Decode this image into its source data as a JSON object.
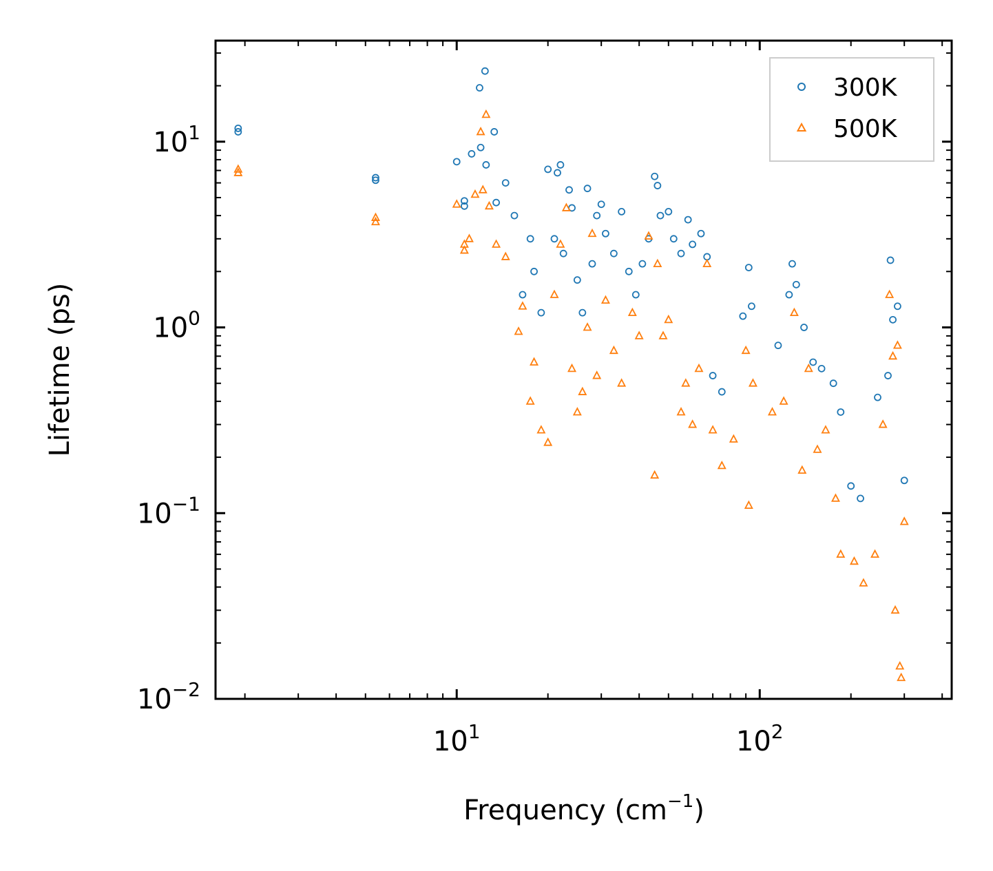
{
  "chart_data": {
    "type": "scatter",
    "xscale": "log",
    "yscale": "log",
    "xlim": [
      1.6,
      430
    ],
    "ylim": [
      0.01,
      35
    ],
    "xlabel": "Frequency (cm",
    "xlabel_sup": "−1",
    "xlabel_end": ")",
    "ylabel": "Lifetime (ps)",
    "x_ticks": [
      {
        "value": 10,
        "base": "10",
        "exp": "1"
      },
      {
        "value": 100,
        "base": "10",
        "exp": "2"
      }
    ],
    "y_ticks": [
      {
        "value": 10,
        "base": "10",
        "exp": "1"
      },
      {
        "value": 1,
        "base": "10",
        "exp": "0"
      },
      {
        "value": 0.1,
        "base": "10",
        "exp": "−1"
      },
      {
        "value": 0.01,
        "base": "10",
        "exp": "−2"
      }
    ],
    "legend_position": "top-right",
    "series": [
      {
        "name": "300K",
        "color": "#1f77b4",
        "marker": "circle",
        "points": [
          [
            1.9,
            11.8
          ],
          [
            1.9,
            11.3
          ],
          [
            5.4,
            6.4
          ],
          [
            5.4,
            6.2
          ],
          [
            10.0,
            7.8
          ],
          [
            10.6,
            4.8
          ],
          [
            10.6,
            4.5
          ],
          [
            11.2,
            8.6
          ],
          [
            11.9,
            19.5
          ],
          [
            12.4,
            24.0
          ],
          [
            12.0,
            9.3
          ],
          [
            12.5,
            7.5
          ],
          [
            13.3,
            11.3
          ],
          [
            13.5,
            4.7
          ],
          [
            14.5,
            6.0
          ],
          [
            15.5,
            4.0
          ],
          [
            16.5,
            1.5
          ],
          [
            17.5,
            3.0
          ],
          [
            18.0,
            2.0
          ],
          [
            19.0,
            1.2
          ],
          [
            20.0,
            7.1
          ],
          [
            21.0,
            3.0
          ],
          [
            21.5,
            6.8
          ],
          [
            22.0,
            7.5
          ],
          [
            22.5,
            2.5
          ],
          [
            23.5,
            5.5
          ],
          [
            24.0,
            4.4
          ],
          [
            25.0,
            1.8
          ],
          [
            26.0,
            1.2
          ],
          [
            27.0,
            5.6
          ],
          [
            28.0,
            2.2
          ],
          [
            29.0,
            4.0
          ],
          [
            30.0,
            4.6
          ],
          [
            31.0,
            3.2
          ],
          [
            33.0,
            2.5
          ],
          [
            35.0,
            4.2
          ],
          [
            37.0,
            2.0
          ],
          [
            39.0,
            1.5
          ],
          [
            41.0,
            2.2
          ],
          [
            43.0,
            3.0
          ],
          [
            45.0,
            6.5
          ],
          [
            46.0,
            5.8
          ],
          [
            47.0,
            4.0
          ],
          [
            50.0,
            4.2
          ],
          [
            52.0,
            3.0
          ],
          [
            55.0,
            2.5
          ],
          [
            58.0,
            3.8
          ],
          [
            60.0,
            2.8
          ],
          [
            64.0,
            3.2
          ],
          [
            67.0,
            2.4
          ],
          [
            70.0,
            0.55
          ],
          [
            75.0,
            0.45
          ],
          [
            88.0,
            1.15
          ],
          [
            92.0,
            2.1
          ],
          [
            94.0,
            1.3
          ],
          [
            115.0,
            0.8
          ],
          [
            125.0,
            1.5
          ],
          [
            128.0,
            2.2
          ],
          [
            132.0,
            1.7
          ],
          [
            140.0,
            1.0
          ],
          [
            150.0,
            0.65
          ],
          [
            160.0,
            0.6
          ],
          [
            175.0,
            0.5
          ],
          [
            185.0,
            0.35
          ],
          [
            200.0,
            0.14
          ],
          [
            215.0,
            0.12
          ],
          [
            245.0,
            0.42
          ],
          [
            265.0,
            0.55
          ],
          [
            270.0,
            2.3
          ],
          [
            275.0,
            1.1
          ],
          [
            285.0,
            1.3
          ],
          [
            300.0,
            0.15
          ]
        ]
      },
      {
        "name": "500K",
        "color": "#ff7f0e",
        "marker": "triangle",
        "points": [
          [
            1.9,
            7.1
          ],
          [
            1.9,
            6.8
          ],
          [
            5.4,
            3.9
          ],
          [
            5.4,
            3.7
          ],
          [
            10.0,
            4.6
          ],
          [
            10.6,
            2.8
          ],
          [
            10.6,
            2.6
          ],
          [
            11.0,
            3.0
          ],
          [
            11.5,
            5.2
          ],
          [
            12.0,
            11.3
          ],
          [
            12.5,
            14.0
          ],
          [
            12.2,
            5.5
          ],
          [
            12.8,
            4.5
          ],
          [
            13.5,
            2.8
          ],
          [
            14.5,
            2.4
          ],
          [
            16.0,
            0.95
          ],
          [
            16.5,
            1.3
          ],
          [
            17.5,
            0.4
          ],
          [
            18.0,
            0.65
          ],
          [
            19.0,
            0.28
          ],
          [
            20.0,
            0.24
          ],
          [
            21.0,
            1.5
          ],
          [
            22.0,
            2.8
          ],
          [
            23.0,
            4.4
          ],
          [
            24.0,
            0.6
          ],
          [
            25.0,
            0.35
          ],
          [
            26.0,
            0.45
          ],
          [
            27.0,
            1.0
          ],
          [
            28.0,
            3.2
          ],
          [
            29.0,
            0.55
          ],
          [
            31.0,
            1.4
          ],
          [
            33.0,
            0.75
          ],
          [
            35.0,
            0.5
          ],
          [
            38.0,
            1.2
          ],
          [
            40.0,
            0.9
          ],
          [
            43.0,
            3.1
          ],
          [
            45.0,
            0.16
          ],
          [
            46.0,
            2.2
          ],
          [
            48.0,
            0.9
          ],
          [
            50.0,
            1.1
          ],
          [
            55.0,
            0.35
          ],
          [
            57.0,
            0.5
          ],
          [
            60.0,
            0.3
          ],
          [
            63.0,
            0.6
          ],
          [
            67.0,
            2.2
          ],
          [
            70.0,
            0.28
          ],
          [
            75.0,
            0.18
          ],
          [
            82.0,
            0.25
          ],
          [
            90.0,
            0.75
          ],
          [
            92.0,
            0.11
          ],
          [
            95.0,
            0.5
          ],
          [
            110.0,
            0.35
          ],
          [
            120.0,
            0.4
          ],
          [
            130.0,
            1.2
          ],
          [
            138.0,
            0.17
          ],
          [
            145.0,
            0.6
          ],
          [
            155.0,
            0.22
          ],
          [
            165.0,
            0.28
          ],
          [
            178.0,
            0.12
          ],
          [
            185.0,
            0.06
          ],
          [
            205.0,
            0.055
          ],
          [
            220.0,
            0.042
          ],
          [
            240.0,
            0.06
          ],
          [
            255.0,
            0.3
          ],
          [
            268.0,
            1.5
          ],
          [
            275.0,
            0.7
          ],
          [
            280.0,
            0.03
          ],
          [
            285.0,
            0.8
          ],
          [
            290.0,
            0.015
          ],
          [
            293.0,
            0.013
          ],
          [
            300.0,
            0.09
          ]
        ]
      }
    ]
  }
}
